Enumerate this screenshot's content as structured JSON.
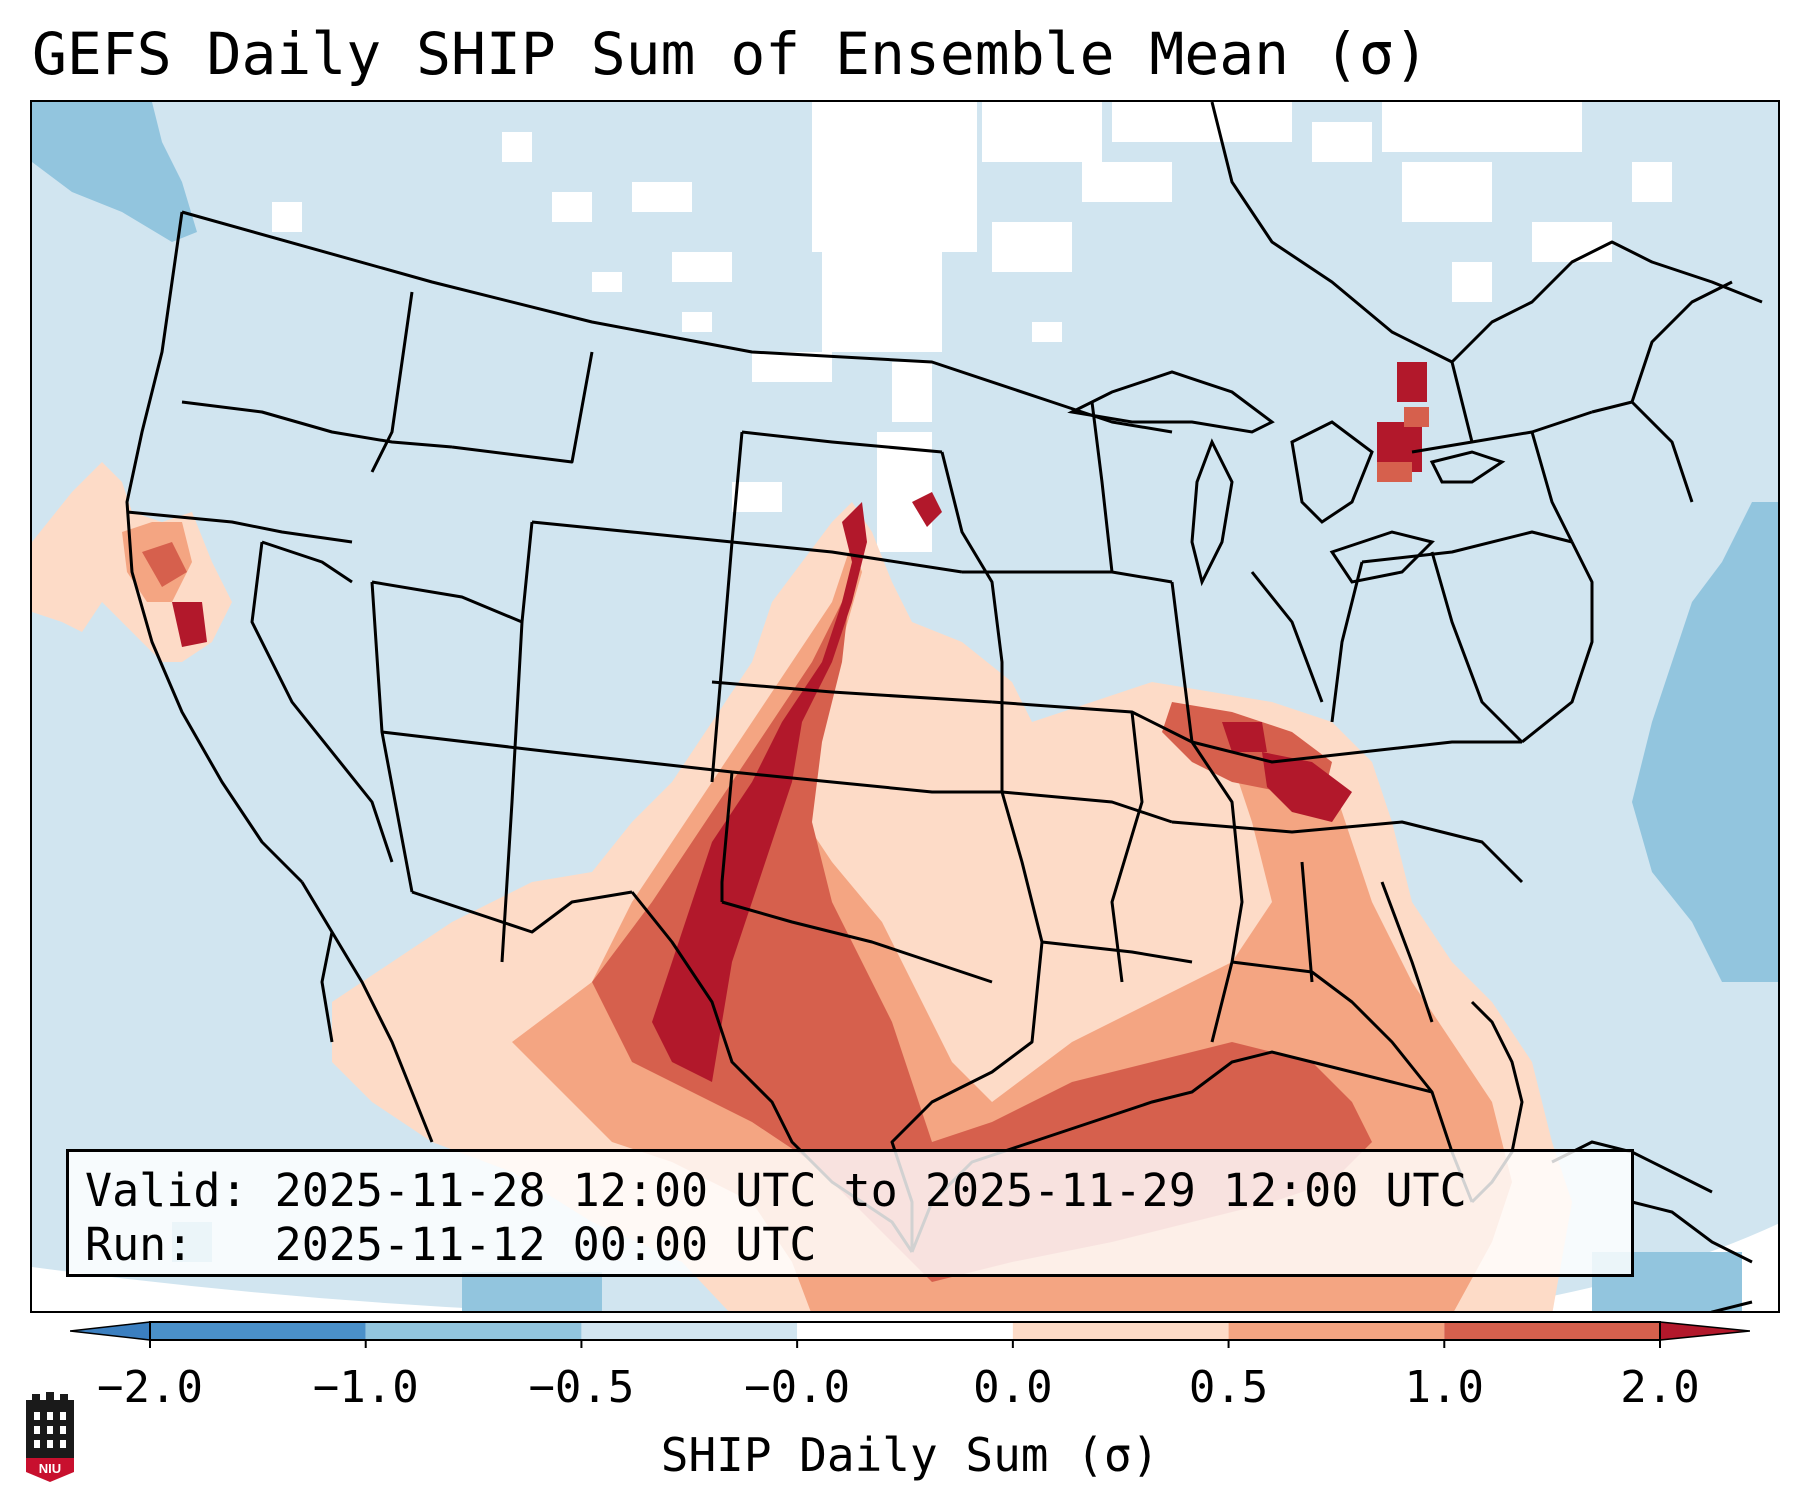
{
  "header": {
    "title": "GEFS Daily SHIP Sum of Ensemble Mean (σ)"
  },
  "info_box": {
    "valid_line": "Valid: 2025-11-28 12:00 UTC to 2025-11-29 12:00 UTC",
    "run_line": "Run:   2025-11-12 00:00 UTC"
  },
  "colorbar": {
    "label": "SHIP Daily Sum (σ)",
    "ticks": [
      "−2.0",
      "−1.0",
      "−0.5",
      "−0.0",
      "0.0",
      "0.5",
      "1.0",
      "2.0"
    ],
    "bins": [
      {
        "range": "< -2.0",
        "color": "#3b7fc0"
      },
      {
        "range": "-2.0 to -1.0",
        "color": "#4a90c9"
      },
      {
        "range": "-1.0 to -0.5",
        "color": "#92c5de"
      },
      {
        "range": "-0.5 to -0.0",
        "color": "#d1e5f0"
      },
      {
        "range": "-0.0 to 0.0",
        "color": "#ffffff"
      },
      {
        "range": "0.0 to 0.5",
        "color": "#fddbc7"
      },
      {
        "range": "0.5 to 1.0",
        "color": "#f4a582"
      },
      {
        "range": "1.0 to 2.0",
        "color": "#d6604d"
      },
      {
        "range": "> 2.0",
        "color": "#b2182b"
      }
    ]
  },
  "map": {
    "region": "Contiguous United States",
    "colors": {
      "background_ocean": "#d1e5f0",
      "white_zero": "#ffffff",
      "light_red": "#fddbc7",
      "mid_red": "#f4a582",
      "red": "#d6604d",
      "dark_red": "#b2182b",
      "light_blue": "#92c5de",
      "border": "#000000"
    }
  },
  "logo": {
    "text": "NIU"
  }
}
